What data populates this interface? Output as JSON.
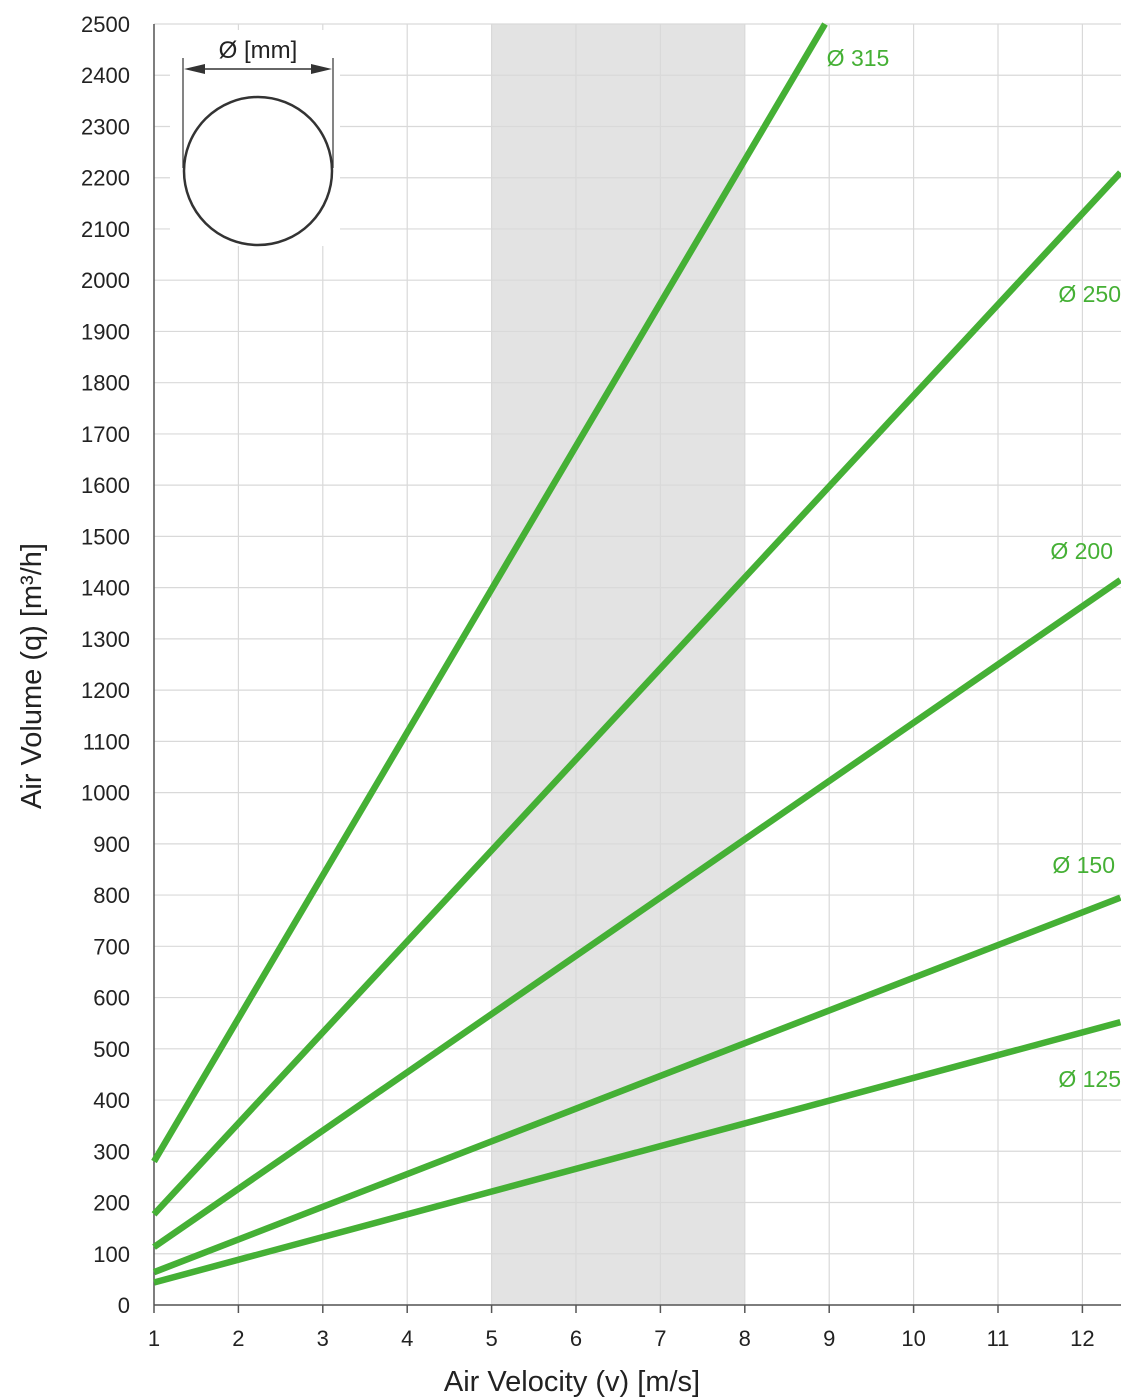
{
  "chart_data": {
    "type": "line",
    "xlabel": "Air Velocity (v) [m/s]",
    "ylabel": "Air Volume (q) [m³/h]",
    "xlim": [
      1,
      12.45
    ],
    "ylim": [
      0,
      2500
    ],
    "x_ticks": [
      "1",
      "2",
      "3",
      "4",
      "5",
      "6",
      "7",
      "8",
      "9",
      "10",
      "11",
      "12"
    ],
    "y_ticks": [
      "0",
      "100",
      "200",
      "300",
      "400",
      "500",
      "600",
      "700",
      "800",
      "900",
      "1000",
      "1100",
      "1200",
      "1300",
      "1400",
      "1500",
      "1600",
      "1700",
      "1800",
      "1900",
      "2000",
      "2100",
      "2200",
      "2300",
      "2400",
      "2500"
    ],
    "grid": true,
    "highlight_band": {
      "x_from": 5,
      "x_to": 8,
      "color": "#e3e3e3"
    },
    "series_color": "#45b035",
    "series": [
      {
        "name": "Ø 315",
        "x": [
          1,
          8.95
        ],
        "values": [
          280,
          2500
        ]
      },
      {
        "name": "Ø 250",
        "x": [
          1,
          12.45
        ],
        "values": [
          177,
          2210
        ]
      },
      {
        "name": "Ø 200",
        "x": [
          1,
          12.45
        ],
        "values": [
          113,
          1415
        ]
      },
      {
        "name": "Ø 150",
        "x": [
          1,
          12.45
        ],
        "values": [
          64,
          795
        ]
      },
      {
        "name": "Ø 125",
        "x": [
          1,
          12.45
        ],
        "values": [
          44,
          552
        ]
      }
    ],
    "legend_inset": {
      "label": "Ø [mm]"
    }
  }
}
